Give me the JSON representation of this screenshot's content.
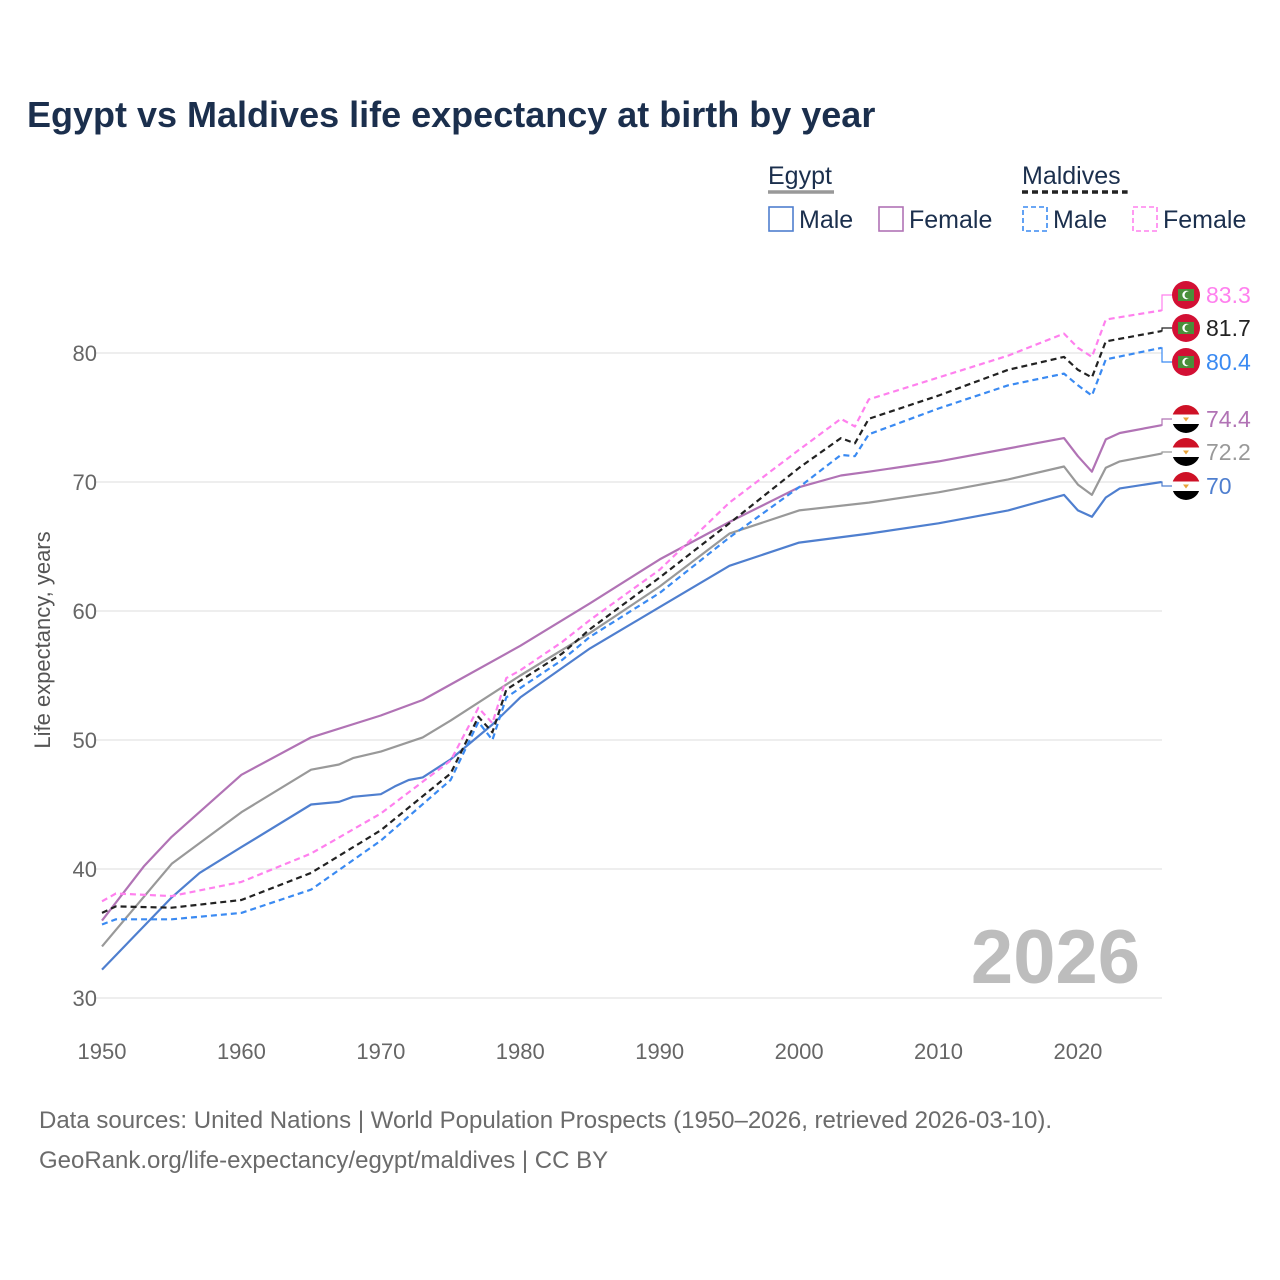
{
  "title": "Egypt vs Maldives life expectancy at birth by year",
  "footer": {
    "line1": "Data sources: United Nations | World Population Prospects (1950–2026, retrieved 2026-03-10).",
    "line2": "GeoRank.org/life-expectancy/egypt/maldives | CC BY"
  },
  "legend": {
    "groups": [
      {
        "name": "Egypt",
        "style": "solid",
        "color": "#999999",
        "items": [
          {
            "label": "Male",
            "color": "#4f7fcf"
          },
          {
            "label": "Female",
            "color": "#b173b5"
          }
        ]
      },
      {
        "name": "Maldives",
        "style": "dashed",
        "color": "#222222",
        "items": [
          {
            "label": "Male",
            "color": "#3a8af2"
          },
          {
            "label": "Female",
            "color": "#ff80ee"
          }
        ]
      }
    ]
  },
  "chart_data": {
    "type": "line",
    "title": "Egypt vs Maldives life expectancy at birth by year",
    "xlabel": "",
    "ylabel": "Life expectancy, years",
    "xlim": [
      1950,
      2026
    ],
    "ylim": [
      30,
      85
    ],
    "x_ticks": [
      1950,
      1960,
      1970,
      1980,
      1990,
      2000,
      2010,
      2020
    ],
    "y_ticks": [
      30,
      40,
      50,
      60,
      70,
      80
    ],
    "grid": "horizontal",
    "legend_position": "top-right",
    "watermark_year": "2026",
    "series": [
      {
        "name": "Egypt Male",
        "country": "Egypt",
        "flag": "egypt",
        "style": "solid",
        "color": "#4f7fcf",
        "end_label": "70",
        "points": [
          [
            1950,
            32.2
          ],
          [
            1955,
            37.8
          ],
          [
            1957,
            39.7
          ],
          [
            1960,
            41.7
          ],
          [
            1965,
            45.0
          ],
          [
            1967,
            45.2
          ],
          [
            1968,
            45.6
          ],
          [
            1970,
            45.8
          ],
          [
            1971,
            46.4
          ],
          [
            1972,
            46.9
          ],
          [
            1973,
            47.1
          ],
          [
            1975,
            48.5
          ],
          [
            1978,
            51.2
          ],
          [
            1980,
            53.3
          ],
          [
            1985,
            57.1
          ],
          [
            1990,
            60.3
          ],
          [
            1995,
            63.5
          ],
          [
            2000,
            65.3
          ],
          [
            2005,
            66.0
          ],
          [
            2010,
            66.8
          ],
          [
            2015,
            67.8
          ],
          [
            2019,
            69.0
          ],
          [
            2020,
            67.8
          ],
          [
            2021,
            67.3
          ],
          [
            2022,
            68.8
          ],
          [
            2023,
            69.5
          ],
          [
            2026,
            70.0
          ]
        ]
      },
      {
        "name": "Egypt Total",
        "country": "Egypt",
        "flag": "egypt",
        "style": "solid",
        "color": "#999999",
        "end_label": "72.2",
        "points": [
          [
            1950,
            34.0
          ],
          [
            1955,
            40.4
          ],
          [
            1960,
            44.4
          ],
          [
            1965,
            47.7
          ],
          [
            1967,
            48.1
          ],
          [
            1968,
            48.6
          ],
          [
            1970,
            49.1
          ],
          [
            1973,
            50.2
          ],
          [
            1975,
            51.5
          ],
          [
            1980,
            55.0
          ],
          [
            1985,
            58.3
          ],
          [
            1990,
            61.9
          ],
          [
            1995,
            66.0
          ],
          [
            2000,
            67.8
          ],
          [
            2005,
            68.4
          ],
          [
            2010,
            69.2
          ],
          [
            2015,
            70.2
          ],
          [
            2019,
            71.2
          ],
          [
            2020,
            69.8
          ],
          [
            2021,
            69.0
          ],
          [
            2022,
            71.1
          ],
          [
            2023,
            71.6
          ],
          [
            2026,
            72.2
          ]
        ]
      },
      {
        "name": "Egypt Female",
        "country": "Egypt",
        "flag": "egypt",
        "style": "solid",
        "color": "#b173b5",
        "end_label": "74.4",
        "points": [
          [
            1950,
            36.0
          ],
          [
            1953,
            40.2
          ],
          [
            1955,
            42.5
          ],
          [
            1960,
            47.3
          ],
          [
            1965,
            50.2
          ],
          [
            1970,
            51.9
          ],
          [
            1973,
            53.1
          ],
          [
            1975,
            54.3
          ],
          [
            1980,
            57.3
          ],
          [
            1985,
            60.6
          ],
          [
            1990,
            64.0
          ],
          [
            1995,
            66.9
          ],
          [
            2000,
            69.6
          ],
          [
            2003,
            70.5
          ],
          [
            2005,
            70.8
          ],
          [
            2010,
            71.6
          ],
          [
            2015,
            72.6
          ],
          [
            2019,
            73.4
          ],
          [
            2020,
            72.0
          ],
          [
            2021,
            70.8
          ],
          [
            2022,
            73.3
          ],
          [
            2023,
            73.8
          ],
          [
            2026,
            74.4
          ]
        ]
      },
      {
        "name": "Maldives Male",
        "country": "Maldives",
        "flag": "maldives",
        "style": "dashed",
        "color": "#3a8af2",
        "end_label": "80.4",
        "points": [
          [
            1950,
            35.7
          ],
          [
            1951,
            36.1
          ],
          [
            1955,
            36.1
          ],
          [
            1960,
            36.6
          ],
          [
            1965,
            38.4
          ],
          [
            1970,
            42.2
          ],
          [
            1975,
            46.9
          ],
          [
            1977,
            51.4
          ],
          [
            1978,
            50.0
          ],
          [
            1979,
            53.3
          ],
          [
            1983,
            56.2
          ],
          [
            1985,
            58.0
          ],
          [
            1990,
            61.4
          ],
          [
            1995,
            65.7
          ],
          [
            2000,
            69.6
          ],
          [
            2003,
            72.1
          ],
          [
            2004,
            72.0
          ],
          [
            2005,
            73.7
          ],
          [
            2010,
            75.7
          ],
          [
            2015,
            77.5
          ],
          [
            2019,
            78.4
          ],
          [
            2020,
            77.5
          ],
          [
            2021,
            76.7
          ],
          [
            2022,
            79.5
          ],
          [
            2026,
            80.4
          ]
        ]
      },
      {
        "name": "Maldives Total",
        "country": "Maldives",
        "flag": "maldives",
        "style": "dashed",
        "color": "#222222",
        "end_label": "81.7",
        "points": [
          [
            1950,
            36.6
          ],
          [
            1951,
            37.1
          ],
          [
            1955,
            37.0
          ],
          [
            1960,
            37.6
          ],
          [
            1965,
            39.7
          ],
          [
            1970,
            43.0
          ],
          [
            1975,
            47.4
          ],
          [
            1977,
            51.8
          ],
          [
            1978,
            50.6
          ],
          [
            1979,
            53.9
          ],
          [
            1983,
            56.7
          ],
          [
            1985,
            58.6
          ],
          [
            1990,
            62.6
          ],
          [
            1995,
            66.8
          ],
          [
            2000,
            71.1
          ],
          [
            2003,
            73.4
          ],
          [
            2004,
            73.0
          ],
          [
            2005,
            74.9
          ],
          [
            2010,
            76.7
          ],
          [
            2015,
            78.7
          ],
          [
            2019,
            79.7
          ],
          [
            2020,
            78.7
          ],
          [
            2021,
            78.1
          ],
          [
            2022,
            80.9
          ],
          [
            2026,
            81.7
          ]
        ]
      },
      {
        "name": "Maldives Female",
        "country": "Maldives",
        "flag": "maldives",
        "style": "dashed",
        "color": "#ff80ee",
        "end_label": "83.3",
        "points": [
          [
            1950,
            37.5
          ],
          [
            1951,
            38.1
          ],
          [
            1955,
            37.9
          ],
          [
            1960,
            39.0
          ],
          [
            1965,
            41.2
          ],
          [
            1970,
            44.3
          ],
          [
            1975,
            48.4
          ],
          [
            1977,
            52.5
          ],
          [
            1978,
            51.3
          ],
          [
            1979,
            54.8
          ],
          [
            1980,
            55.4
          ],
          [
            1983,
            57.6
          ],
          [
            1985,
            59.3
          ],
          [
            1990,
            63.2
          ],
          [
            1995,
            68.4
          ],
          [
            2000,
            72.5
          ],
          [
            2003,
            74.9
          ],
          [
            2004,
            74.3
          ],
          [
            2005,
            76.4
          ],
          [
            2010,
            78.1
          ],
          [
            2015,
            79.8
          ],
          [
            2019,
            81.5
          ],
          [
            2020,
            80.4
          ],
          [
            2021,
            79.7
          ],
          [
            2022,
            82.6
          ],
          [
            2026,
            83.3
          ]
        ]
      }
    ]
  }
}
